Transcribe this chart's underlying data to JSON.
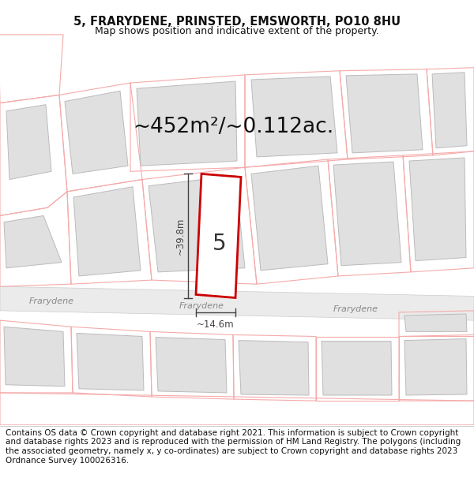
{
  "title": "5, FRARYDENE, PRINSTED, EMSWORTH, PO10 8HU",
  "subtitle": "Map shows position and indicative extent of the property.",
  "footer": "Contains OS data © Crown copyright and database right 2021. This information is subject to Crown copyright and database rights 2023 and is reproduced with the permission of HM Land Registry. The polygons (including the associated geometry, namely x, y co-ordinates) are subject to Crown copyright and database rights 2023 Ordnance Survey 100026316.",
  "area_label": "~452m²/~0.112ac.",
  "width_label": "~14.6m",
  "height_label": "~39.8m",
  "number_label": "5",
  "bg_color": "#ffffff",
  "map_bg": "#ffffff",
  "building_fill": "#e0e0e0",
  "building_stroke": "#bbbbbb",
  "parcel_stroke": "#f0a0a0",
  "plot_stroke": "#cc0000",
  "road_fill": "#e8e8e8",
  "road_edge": "#cccccc",
  "dim_color": "#444444",
  "road_label_color": "#888888",
  "title_fontsize": 10.5,
  "subtitle_fontsize": 9,
  "footer_fontsize": 7.5,
  "area_fontsize": 19,
  "dim_fontsize": 8.5,
  "number_fontsize": 20
}
